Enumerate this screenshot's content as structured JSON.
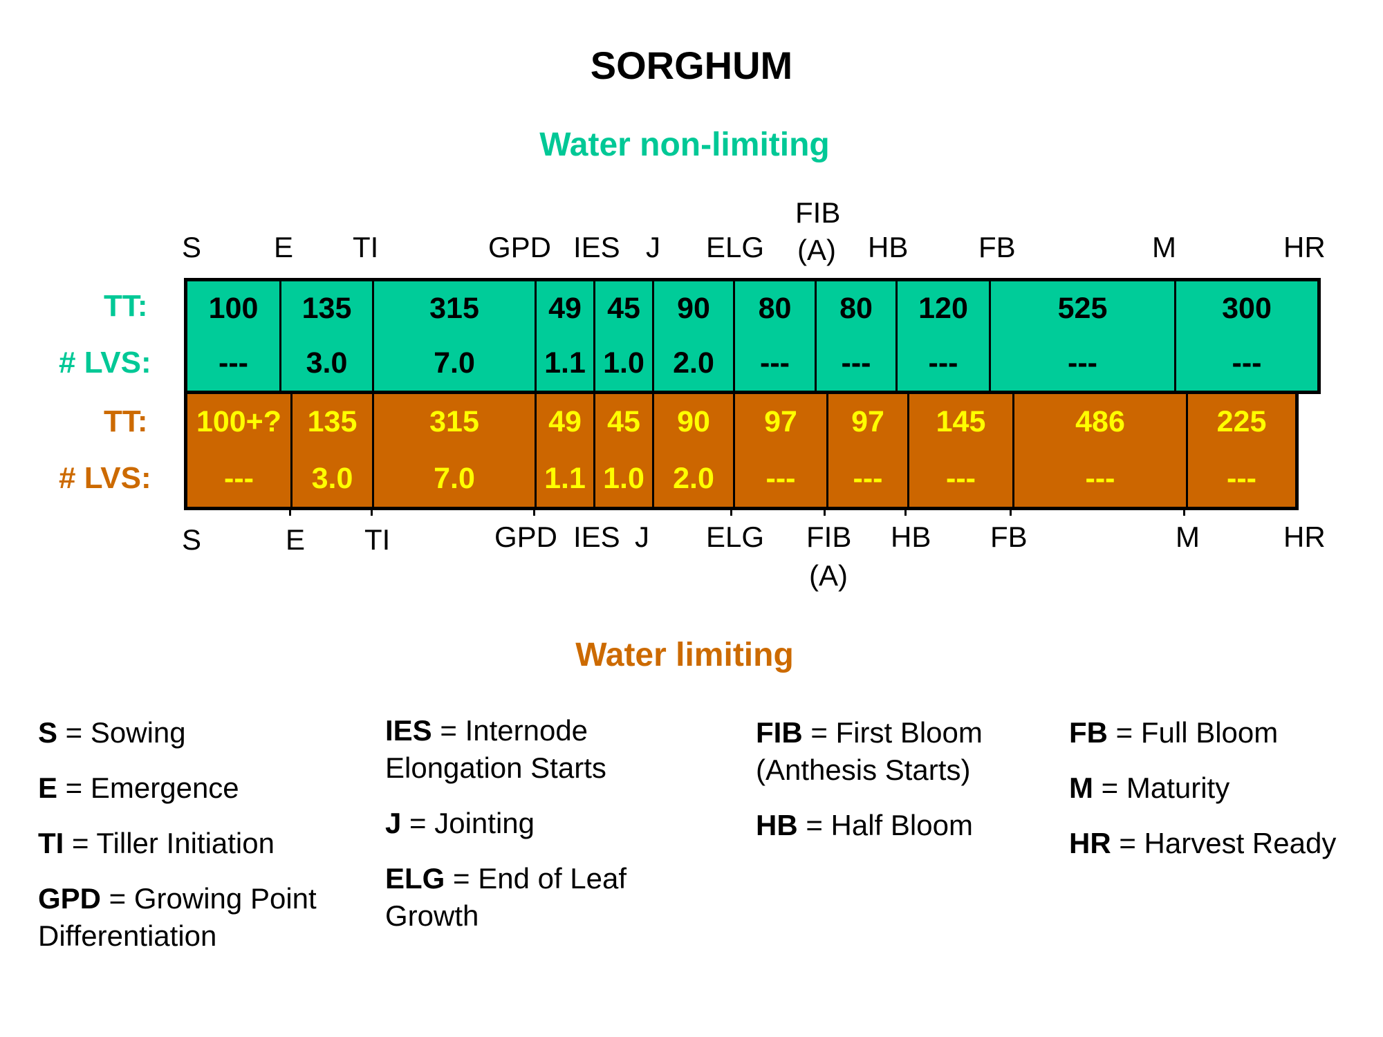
{
  "title": "SORGHUM",
  "water_non_limiting": {
    "subtitle": "Water non-limiting",
    "tt_label": "TT:",
    "lvs_label": "# LVS:",
    "stages": [
      "S",
      "E",
      "TI",
      "GPD",
      "IES",
      "J",
      "ELG",
      "FIB",
      "(A)",
      "HB",
      "FB",
      "M",
      "HR"
    ],
    "cells": [
      {
        "tt": "100",
        "lvs": "---"
      },
      {
        "tt": "135",
        "lvs": "3.0"
      },
      {
        "tt": "315",
        "lvs": "7.0"
      },
      {
        "tt": "49",
        "lvs": "1.1"
      },
      {
        "tt": "45",
        "lvs": "1.0"
      },
      {
        "tt": "90",
        "lvs": "2.0"
      },
      {
        "tt": "80",
        "lvs": "---"
      },
      {
        "tt": "80",
        "lvs": "---"
      },
      {
        "tt": "120",
        "lvs": "---"
      },
      {
        "tt": "525",
        "lvs": "---"
      },
      {
        "tt": "300",
        "lvs": "---"
      }
    ]
  },
  "water_limiting": {
    "subtitle": "Water limiting",
    "tt_label": "TT:",
    "lvs_label": "# LVS:",
    "stages": [
      "S",
      "E",
      "TI",
      "GPD",
      "IES",
      "J",
      "ELG",
      "FIB",
      "(A)",
      "HB",
      "FB",
      "M",
      "HR"
    ],
    "cells": [
      {
        "tt": "100+?",
        "lvs": "---"
      },
      {
        "tt": "135",
        "lvs": "3.0"
      },
      {
        "tt": "315",
        "lvs": "7.0"
      },
      {
        "tt": "49",
        "lvs": "1.1"
      },
      {
        "tt": "45",
        "lvs": "1.0"
      },
      {
        "tt": "90",
        "lvs": "2.0"
      },
      {
        "tt": "97",
        "lvs": "---"
      },
      {
        "tt": "97",
        "lvs": "---"
      },
      {
        "tt": "145",
        "lvs": "---"
      },
      {
        "tt": "486",
        "lvs": "---"
      },
      {
        "tt": "225",
        "lvs": "---"
      }
    ]
  },
  "legend": [
    [
      {
        "abbr": "S",
        "text": " = Sowing"
      },
      {
        "abbr": "E",
        "text": " = Emergence"
      },
      {
        "abbr": "TI",
        "text": " = Tiller Initiation"
      },
      {
        "abbr": "GPD",
        "text": " = Growing Point Differentiation"
      }
    ],
    [
      {
        "abbr": "IES",
        "text": " = Internode Elongation Starts"
      },
      {
        "abbr": "J",
        "text": " = Jointing"
      },
      {
        "abbr": "ELG",
        "text": " = End of Leaf Growth"
      }
    ],
    [
      {
        "abbr": "FIB",
        "text": " = First Bloom (Anthesis Starts)"
      },
      {
        "abbr": "HB",
        "text": " = Half Bloom"
      }
    ],
    [
      {
        "abbr": "FB",
        "text": " = Full Bloom"
      },
      {
        "abbr": "M",
        "text": " = Maturity"
      },
      {
        "abbr": "HR",
        "text": " = Harvest Ready"
      }
    ]
  ],
  "colors": {
    "wet_band": "#00cc99",
    "wet_text": "#00c896",
    "dry_band": "#cc6600",
    "dry_values": "#ffff00",
    "dry_text": "#cc6a00"
  }
}
